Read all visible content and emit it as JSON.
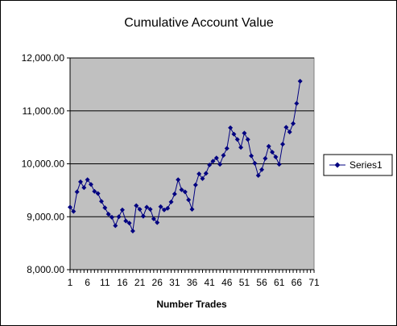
{
  "chart_data": {
    "type": "line",
    "title": "Cumulative Account Value",
    "xlabel": "Number Trades",
    "ylabel": "",
    "xlim": [
      1,
      71
    ],
    "ylim": [
      8000,
      12000
    ],
    "x_ticks": [
      "1",
      "6",
      "11",
      "16",
      "21",
      "26",
      "31",
      "36",
      "41",
      "46",
      "51",
      "56",
      "61",
      "66",
      "71"
    ],
    "y_ticks": [
      "8,000.00",
      "9,000.00",
      "10,000.00",
      "11,000.00",
      "12,000.00"
    ],
    "y_tick_values": [
      8000,
      9000,
      10000,
      11000,
      12000
    ],
    "grid": "horizontal major gridlines",
    "legend_position": "right",
    "plot_background": "#c0c0c0",
    "series": [
      {
        "name": "Series1",
        "color": "#000080",
        "marker": "diamond",
        "values": [
          9180,
          9100,
          9470,
          9660,
          9550,
          9700,
          9610,
          9480,
          9440,
          9290,
          9170,
          9050,
          8990,
          8830,
          9000,
          9130,
          8920,
          8880,
          8730,
          9210,
          9140,
          9010,
          9180,
          9140,
          8960,
          8890,
          9190,
          9130,
          9160,
          9280,
          9430,
          9700,
          9510,
          9470,
          9320,
          9140,
          9600,
          9810,
          9720,
          9820,
          9980,
          10050,
          10110,
          9990,
          10160,
          10290,
          10680,
          10560,
          10460,
          10310,
          10580,
          10460,
          10150,
          10010,
          9780,
          9890,
          10100,
          10330,
          10220,
          10130,
          9990,
          10370,
          10690,
          10600,
          10760,
          11140,
          11560
        ]
      }
    ]
  }
}
